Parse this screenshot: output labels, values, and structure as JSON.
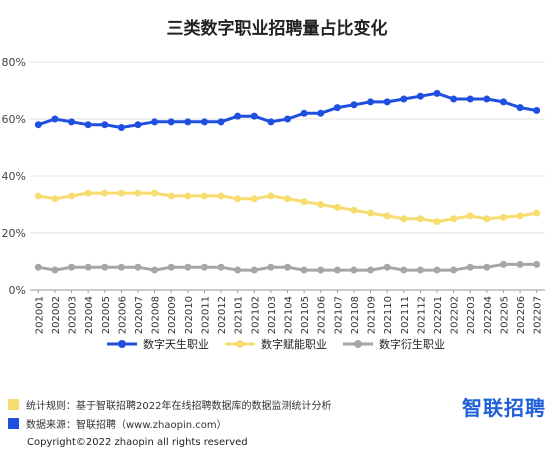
{
  "chart_data": {
    "type": "line",
    "title": "三类数字职业招聘量占比变化",
    "x": [
      "202001",
      "202002",
      "202003",
      "202004",
      "202005",
      "202006",
      "202007",
      "202008",
      "202009",
      "202010",
      "202011",
      "202012",
      "202101",
      "202102",
      "202103",
      "202104",
      "202105",
      "202106",
      "202107",
      "202108",
      "202109",
      "202110",
      "202111",
      "202112",
      "202201",
      "202202",
      "202203",
      "202204",
      "202205",
      "202206",
      "202207"
    ],
    "ylim": [
      0,
      80
    ],
    "yticks": [
      "0%",
      "20%",
      "40%",
      "60%",
      "80%"
    ],
    "grid": true,
    "legend_position": "bottom",
    "series": [
      {
        "name": "数字天生职业",
        "color": "#1f4fe0",
        "values": [
          58,
          60,
          59,
          58,
          58,
          57,
          58,
          59,
          59,
          59,
          59,
          59,
          61,
          61,
          59,
          60,
          62,
          62,
          64,
          65,
          66,
          66,
          67,
          68,
          69,
          67,
          67,
          67,
          66,
          64,
          63
        ]
      },
      {
        "name": "数字赋能职业",
        "color": "#f7dc6f",
        "values": [
          33,
          32,
          33,
          34,
          34,
          34,
          34,
          34,
          33,
          33,
          33,
          33,
          32,
          32,
          33,
          32,
          31,
          30,
          29,
          28,
          27,
          26,
          25,
          25,
          24,
          25,
          26,
          25,
          25.5,
          26,
          27
        ]
      },
      {
        "name": "数字衍生职业",
        "color": "#a6a6a6",
        "values": [
          8,
          7,
          8,
          8,
          8,
          8,
          8,
          7,
          8,
          8,
          8,
          8,
          7,
          7,
          8,
          8,
          7,
          7,
          7,
          7,
          7,
          8,
          7,
          7,
          7,
          7,
          8,
          8,
          9,
          9,
          9
        ]
      }
    ]
  },
  "footer": {
    "rule": "统计规则：基于智联招聘2022年在线招聘数据库的数据监测统计分析",
    "rule_color": "#f7dc6f",
    "source": "数据来源：智联招聘（www.zhaopin.com）",
    "source_color": "#1f4fe0",
    "logo": "智联招聘",
    "copyright": "Copyright©2022 zhaopin all rights reserved"
  }
}
